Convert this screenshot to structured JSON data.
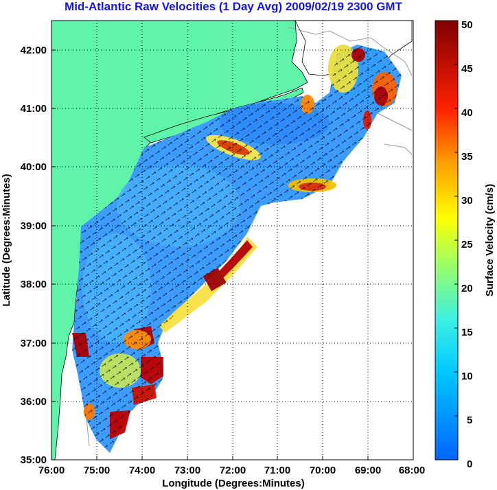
{
  "title": "Mid-Atlantic Raw Velocities (1 Day Avg) 2009/02/19 2300 GMT",
  "map": {
    "xlabel": "Longitude (Degrees:Minutes)",
    "ylabel": "Latitude (Degrees:Minutes)",
    "lon_ticks": [
      "76:00",
      "75:00",
      "74:00",
      "73:00",
      "72:00",
      "71:00",
      "70:00",
      "69:00",
      "68:00"
    ],
    "lat_ticks": [
      "42:00",
      "41:00",
      "40:00",
      "39:00",
      "38:00",
      "37:00",
      "36:00",
      "35:00"
    ],
    "lon_range": [
      -76,
      -68
    ],
    "lat_range": [
      35,
      42.5
    ],
    "land_color": "#5ff5a8",
    "grid": "dotted"
  },
  "colorbar": {
    "label": "Surface Velocity (cm/s)",
    "ticks": [
      "0",
      "5",
      "10",
      "15",
      "20",
      "25",
      "30",
      "35",
      "40",
      "45",
      "50"
    ],
    "range": [
      0,
      50
    ],
    "colors": [
      "#0066ff",
      "#00ccff",
      "#66ffcc",
      "#ccff33",
      "#ffff00",
      "#ff9900",
      "#ff2200",
      "#880000"
    ]
  }
}
